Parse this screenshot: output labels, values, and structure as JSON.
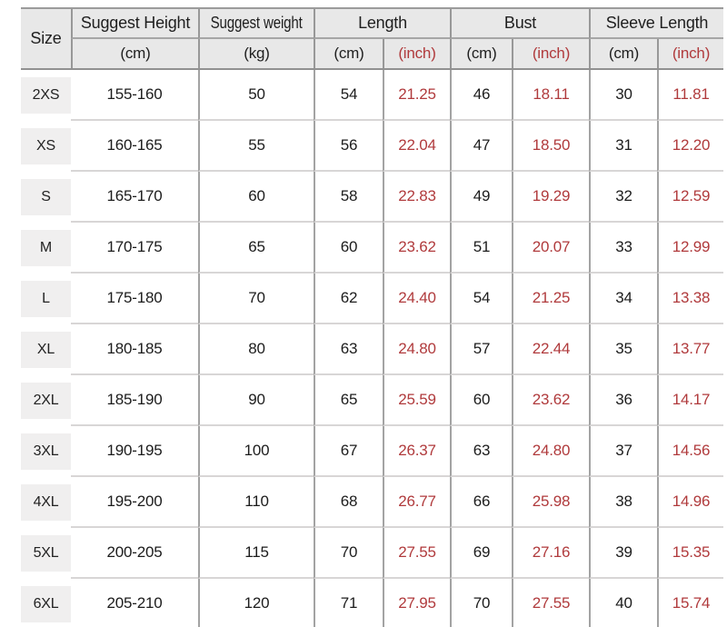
{
  "table": {
    "header": {
      "size": "Size",
      "groups": [
        {
          "label": "Suggest Height",
          "sub_cm": "(cm)"
        },
        {
          "label": "Suggest weight",
          "sub_kg": "(kg)"
        },
        {
          "label": "Length",
          "sub_cm": "(cm)",
          "sub_inch": "(inch)"
        },
        {
          "label": "Bust",
          "sub_cm": "(cm)",
          "sub_inch": "(inch)"
        },
        {
          "label": "Sleeve Length",
          "sub_cm": "(cm)",
          "sub_inch": "(inch)"
        }
      ]
    },
    "rows": [
      {
        "size": "2XS",
        "height": "155-160",
        "weight": "50",
        "length_cm": "54",
        "length_in": "21.25",
        "bust_cm": "46",
        "bust_in": "18.11",
        "sleeve_cm": "30",
        "sleeve_in": "11.81"
      },
      {
        "size": "XS",
        "height": "160-165",
        "weight": "55",
        "length_cm": "56",
        "length_in": "22.04",
        "bust_cm": "47",
        "bust_in": "18.50",
        "sleeve_cm": "31",
        "sleeve_in": "12.20"
      },
      {
        "size": "S",
        "height": "165-170",
        "weight": "60",
        "length_cm": "58",
        "length_in": "22.83",
        "bust_cm": "49",
        "bust_in": "19.29",
        "sleeve_cm": "32",
        "sleeve_in": "12.59"
      },
      {
        "size": "M",
        "height": "170-175",
        "weight": "65",
        "length_cm": "60",
        "length_in": "23.62",
        "bust_cm": "51",
        "bust_in": "20.07",
        "sleeve_cm": "33",
        "sleeve_in": "12.99"
      },
      {
        "size": "L",
        "height": "175-180",
        "weight": "70",
        "length_cm": "62",
        "length_in": "24.40",
        "bust_cm": "54",
        "bust_in": "21.25",
        "sleeve_cm": "34",
        "sleeve_in": "13.38"
      },
      {
        "size": "XL",
        "height": "180-185",
        "weight": "80",
        "length_cm": "63",
        "length_in": "24.80",
        "bust_cm": "57",
        "bust_in": "22.44",
        "sleeve_cm": "35",
        "sleeve_in": "13.77"
      },
      {
        "size": "2XL",
        "height": "185-190",
        "weight": "90",
        "length_cm": "65",
        "length_in": "25.59",
        "bust_cm": "60",
        "bust_in": "23.62",
        "sleeve_cm": "36",
        "sleeve_in": "14.17"
      },
      {
        "size": "3XL",
        "height": "190-195",
        "weight": "100",
        "length_cm": "67",
        "length_in": "26.37",
        "bust_cm": "63",
        "bust_in": "24.80",
        "sleeve_cm": "37",
        "sleeve_in": "14.56"
      },
      {
        "size": "4XL",
        "height": "195-200",
        "weight": "110",
        "length_cm": "68",
        "length_in": "26.77",
        "bust_cm": "66",
        "bust_in": "25.98",
        "sleeve_cm": "38",
        "sleeve_in": "14.96"
      },
      {
        "size": "5XL",
        "height": "200-205",
        "weight": "115",
        "length_cm": "70",
        "length_in": "27.55",
        "bust_cm": "69",
        "bust_in": "27.16",
        "sleeve_cm": "39",
        "sleeve_in": "15.35"
      },
      {
        "size": "6XL",
        "height": "205-210",
        "weight": "120",
        "length_cm": "71",
        "length_in": "27.95",
        "bust_cm": "70",
        "bust_in": "27.55",
        "sleeve_cm": "40",
        "sleeve_in": "15.74"
      }
    ]
  },
  "colors": {
    "inch_accent_red": "#b03a3c",
    "header_background": "#e8e8e8",
    "size_box_background": "#f0efef"
  }
}
